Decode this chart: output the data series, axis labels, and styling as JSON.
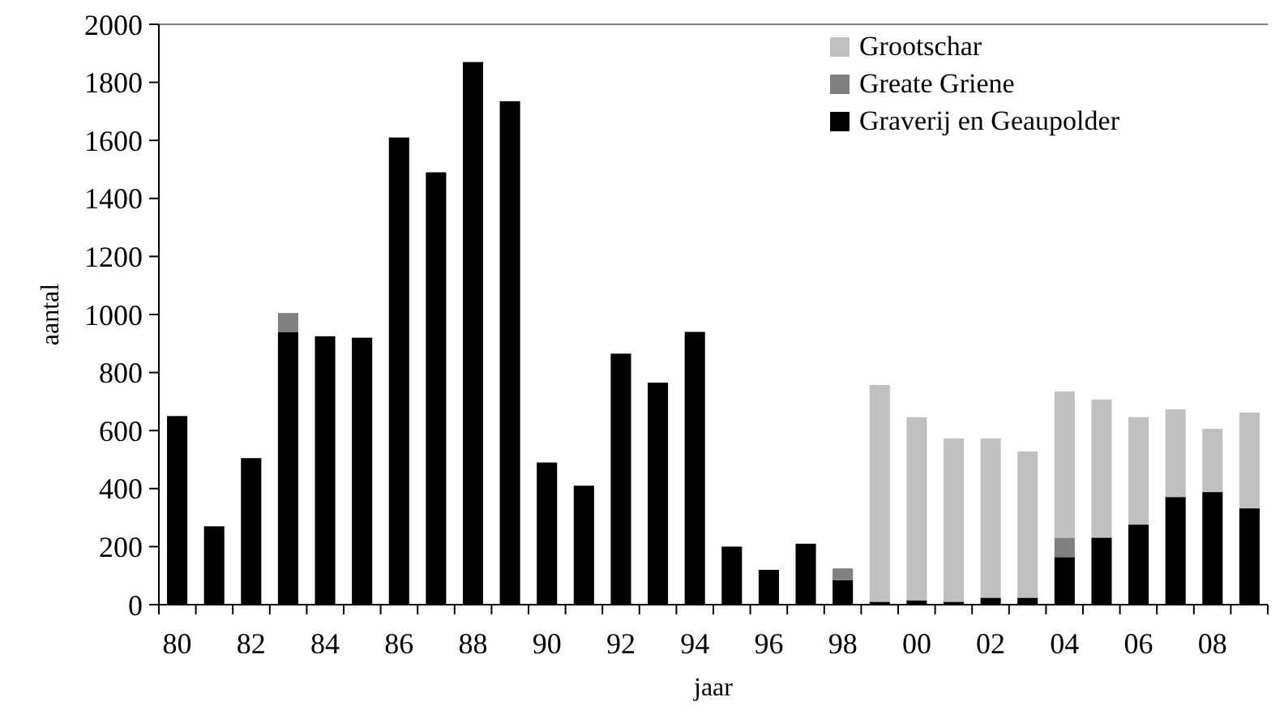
{
  "chart_data": {
    "type": "bar",
    "stacked": true,
    "xlabel": "jaar",
    "ylabel": "aantal",
    "categories": [
      "80",
      null,
      "82",
      null,
      "84",
      null,
      "86",
      null,
      "88",
      null,
      "90",
      null,
      "92",
      null,
      "94",
      null,
      "96",
      null,
      "98",
      null,
      "00",
      null,
      "02",
      null,
      "04",
      null,
      "06",
      null,
      "08",
      null
    ],
    "series": [
      {
        "name": "Graverij en Geaupolder",
        "color": "#000000",
        "values": [
          650,
          270,
          505,
          940,
          925,
          920,
          1610,
          1490,
          1870,
          1735,
          490,
          410,
          865,
          765,
          940,
          200,
          120,
          210,
          85,
          10,
          15,
          10,
          24,
          24,
          164,
          231,
          276,
          371,
          388,
          332
        ]
      },
      {
        "name": "Greate Griene",
        "color": "#808080",
        "values": [
          0,
          0,
          0,
          65,
          0,
          0,
          0,
          0,
          0,
          0,
          0,
          0,
          0,
          0,
          0,
          0,
          0,
          0,
          40,
          0,
          0,
          0,
          0,
          0,
          67,
          0,
          0,
          0,
          0,
          0
        ]
      },
      {
        "name": "Grootschar",
        "color": "#c0c0c0",
        "values": [
          0,
          0,
          0,
          0,
          0,
          0,
          0,
          0,
          0,
          0,
          0,
          0,
          0,
          0,
          0,
          0,
          0,
          0,
          0,
          747,
          631,
          563,
          549,
          504,
          504,
          476,
          370,
          302,
          218,
          330
        ]
      }
    ],
    "ylim": [
      0,
      2000
    ],
    "yticks": [
      0,
      200,
      400,
      600,
      800,
      1000,
      1200,
      1400,
      1600,
      1800,
      2000
    ],
    "grid": false,
    "legend": "top right"
  }
}
